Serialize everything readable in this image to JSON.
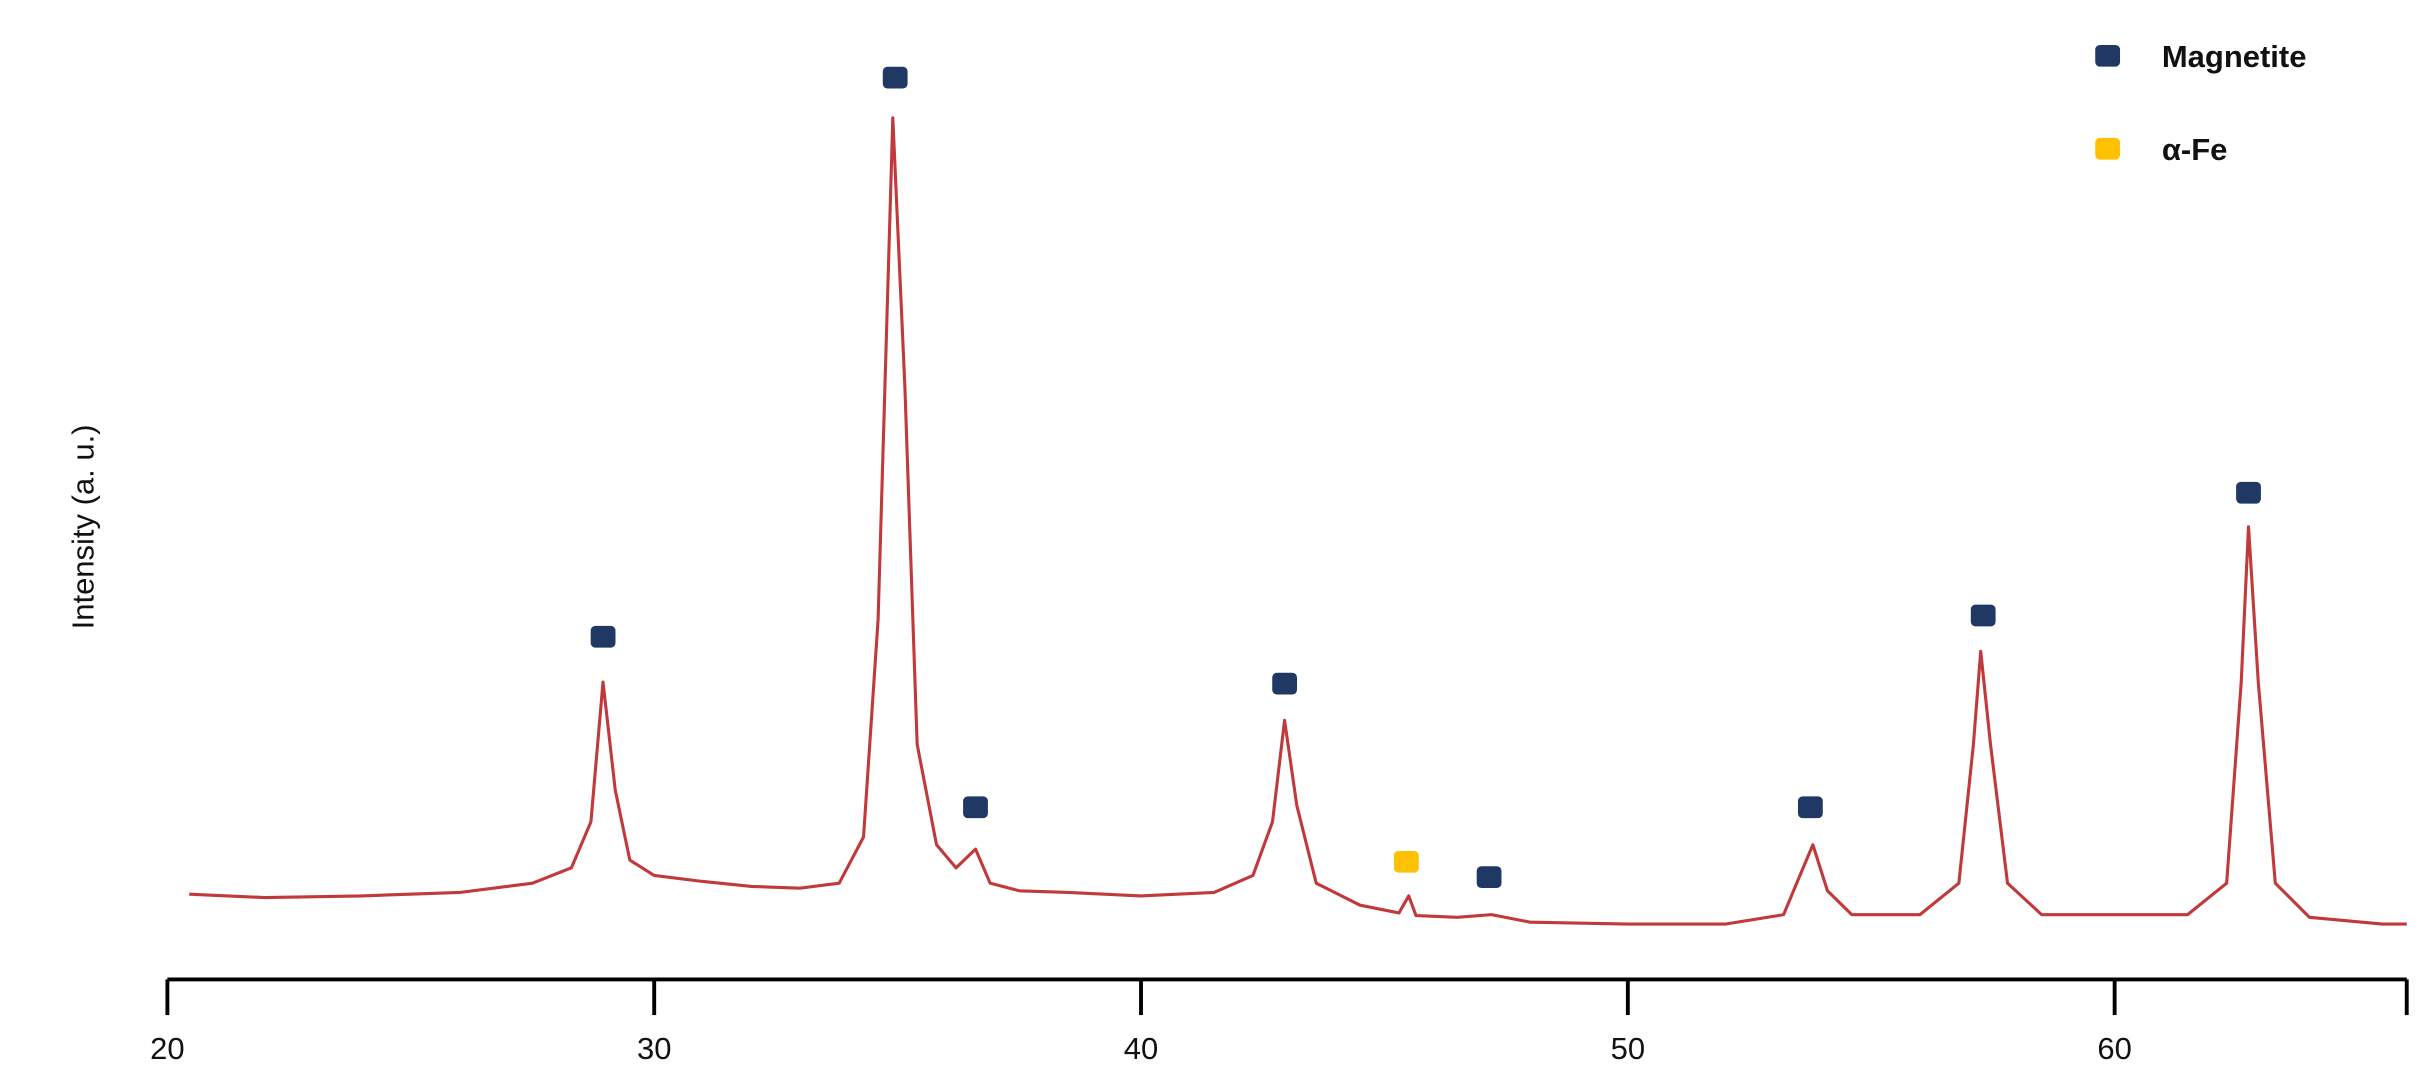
{
  "chart_data": {
    "type": "line",
    "ylabel": "Intensity (a. u.)",
    "xlim": [
      20,
      66
    ],
    "xticks": [
      20,
      30,
      40,
      50,
      60
    ],
    "ylim": [
      0,
      110
    ],
    "legend": "upper right",
    "color": "#c0393b",
    "x": [
      20.45,
      22,
      24,
      26,
      27.5,
      28.3,
      28.7,
      28.95,
      29.2,
      29.5,
      30,
      31,
      32,
      33,
      33.8,
      34.3,
      34.6,
      34.9,
      35.15,
      35.4,
      35.8,
      36.2,
      36.6,
      36.9,
      37.5,
      38.5,
      40,
      41.5,
      42.3,
      42.7,
      42.95,
      43.2,
      43.6,
      44.5,
      45.3,
      45.5,
      45.65,
      46.5,
      47.2,
      48,
      50,
      52,
      53.2,
      53.6,
      53.8,
      54.1,
      54.6,
      56,
      56.8,
      57.1,
      57.25,
      57.45,
      57.8,
      58.5,
      61.5,
      62.3,
      62.6,
      62.75,
      62.95,
      63.3,
      64,
      65.5,
      66
    ],
    "values": [
      6.0,
      5.6,
      5.8,
      6.2,
      7.3,
      9.1,
      14.5,
      30.9,
      18.2,
      10,
      8.2,
      7.5,
      6.9,
      6.7,
      7.3,
      12.7,
      38.2,
      97.1,
      65.5,
      23.6,
      11.8,
      9.1,
      11.3,
      7.3,
      6.4,
      6.2,
      5.8,
      6.2,
      8.2,
      14.5,
      26.4,
      16.4,
      7.3,
      4.7,
      3.8,
      5.8,
      3.5,
      3.3,
      3.6,
      2.7,
      2.5,
      2.5,
      3.6,
      9.1,
      11.8,
      6.4,
      3.6,
      3.6,
      7.3,
      23.6,
      34.5,
      23.6,
      7.3,
      3.6,
      3.6,
      7.3,
      30.9,
      49.1,
      30.9,
      7.3,
      3.3,
      2.5,
      2.5
    ],
    "series": [
      {
        "name": "Magnetite",
        "color": "#1f3864",
        "x": [
          28.95,
          34.95,
          36.6,
          42.95,
          47.15,
          53.75,
          57.3,
          62.75
        ],
        "values": [
          36.2,
          101.8,
          16.2,
          30.7,
          8,
          16.2,
          38.7,
          53.1
        ]
      },
      {
        "name": "α-Fe",
        "color": "#ffc000",
        "x": [
          45.45
        ],
        "values": [
          9.8
        ]
      }
    ]
  }
}
